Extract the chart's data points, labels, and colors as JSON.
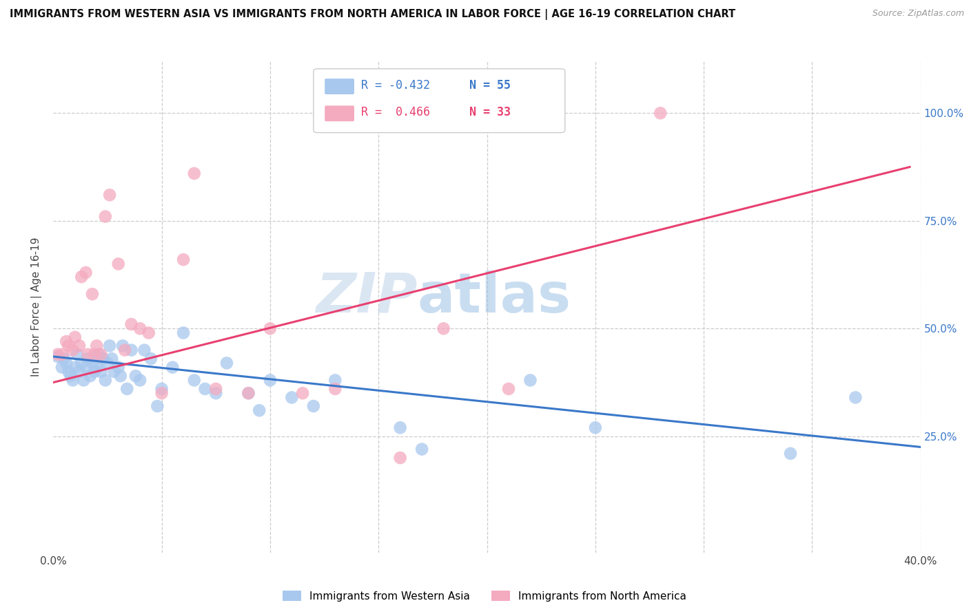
{
  "title": "IMMIGRANTS FROM WESTERN ASIA VS IMMIGRANTS FROM NORTH AMERICA IN LABOR FORCE | AGE 16-19 CORRELATION CHART",
  "source": "Source: ZipAtlas.com",
  "ylabel": "In Labor Force | Age 16-19",
  "xlim": [
    0.0,
    0.4
  ],
  "ylim": [
    -0.02,
    1.12
  ],
  "ytick_values": [
    0.25,
    0.5,
    0.75,
    1.0
  ],
  "ytick_labels_right": [
    "25.0%",
    "50.0%",
    "75.0%",
    "100.0%"
  ],
  "xtick_values": [
    0.0,
    0.05,
    0.1,
    0.15,
    0.2,
    0.25,
    0.3,
    0.35,
    0.4
  ],
  "xtick_labels": [
    "0.0%",
    "",
    "",
    "",
    "",
    "",
    "",
    "",
    "40.0%"
  ],
  "blue_color": "#A8C8EE",
  "pink_color": "#F4AABF",
  "blue_line_color": "#3A78C9",
  "pink_line_color": "#E84070",
  "legend_blue_r": "R = -0.432",
  "legend_blue_n": "N = 55",
  "legend_pink_r": "R =  0.466",
  "legend_pink_n": "N = 33",
  "watermark_zip": "ZIP",
  "watermark_atlas": "atlas",
  "blue_scatter_x": [
    0.002,
    0.004,
    0.005,
    0.006,
    0.007,
    0.008,
    0.009,
    0.01,
    0.011,
    0.012,
    0.013,
    0.014,
    0.015,
    0.016,
    0.017,
    0.018,
    0.019,
    0.02,
    0.021,
    0.022,
    0.023,
    0.024,
    0.025,
    0.026,
    0.027,
    0.028,
    0.03,
    0.031,
    0.032,
    0.034,
    0.036,
    0.038,
    0.04,
    0.042,
    0.045,
    0.048,
    0.05,
    0.055,
    0.06,
    0.065,
    0.07,
    0.075,
    0.08,
    0.09,
    0.095,
    0.1,
    0.11,
    0.12,
    0.13,
    0.16,
    0.17,
    0.22,
    0.25,
    0.34,
    0.37
  ],
  "blue_scatter_y": [
    0.435,
    0.41,
    0.43,
    0.42,
    0.4,
    0.39,
    0.38,
    0.41,
    0.44,
    0.4,
    0.42,
    0.38,
    0.41,
    0.43,
    0.39,
    0.42,
    0.4,
    0.41,
    0.44,
    0.4,
    0.43,
    0.38,
    0.42,
    0.46,
    0.43,
    0.4,
    0.41,
    0.39,
    0.46,
    0.36,
    0.45,
    0.39,
    0.38,
    0.45,
    0.43,
    0.32,
    0.36,
    0.41,
    0.49,
    0.38,
    0.36,
    0.35,
    0.42,
    0.35,
    0.31,
    0.38,
    0.34,
    0.32,
    0.38,
    0.27,
    0.22,
    0.38,
    0.27,
    0.21,
    0.34
  ],
  "pink_scatter_x": [
    0.002,
    0.004,
    0.006,
    0.007,
    0.009,
    0.01,
    0.012,
    0.013,
    0.015,
    0.016,
    0.018,
    0.019,
    0.02,
    0.022,
    0.024,
    0.026,
    0.03,
    0.033,
    0.036,
    0.04,
    0.044,
    0.05,
    0.06,
    0.065,
    0.075,
    0.09,
    0.1,
    0.115,
    0.13,
    0.16,
    0.18,
    0.21,
    0.28
  ],
  "pink_scatter_y": [
    0.44,
    0.44,
    0.47,
    0.46,
    0.45,
    0.48,
    0.46,
    0.62,
    0.63,
    0.44,
    0.58,
    0.44,
    0.46,
    0.44,
    0.76,
    0.81,
    0.65,
    0.45,
    0.51,
    0.5,
    0.49,
    0.35,
    0.66,
    0.86,
    0.36,
    0.35,
    0.5,
    0.35,
    0.36,
    0.2,
    0.5,
    0.36,
    1.0
  ],
  "blue_trend_x": [
    0.0,
    0.4
  ],
  "blue_trend_y": [
    0.435,
    0.225
  ],
  "pink_trend_x": [
    0.0,
    0.395
  ],
  "pink_trend_y": [
    0.375,
    0.875
  ]
}
